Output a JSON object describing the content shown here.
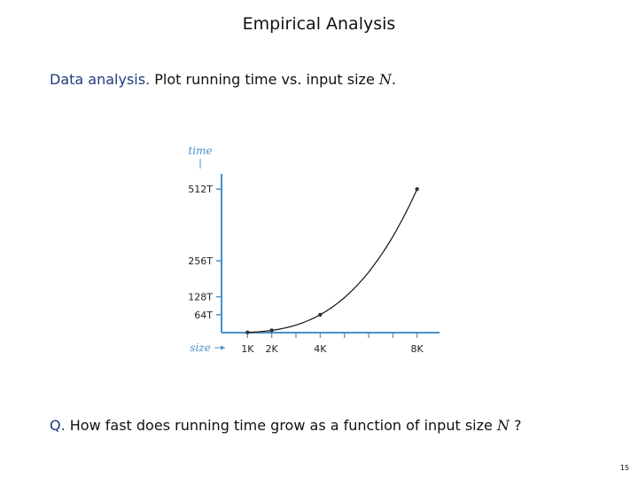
{
  "slide": {
    "title": "Empirical Analysis",
    "page_number": "15"
  },
  "intro": {
    "label": "Data analysis.",
    "text": " Plot running time vs. input size ",
    "variable": "N",
    "end": "."
  },
  "question": {
    "label": "Q.",
    "text": " How fast does running time grow as a function of input size ",
    "variable": "N",
    "end": " ?"
  },
  "colors": {
    "axis": "#4a90c8",
    "curve": "#111111",
    "point": "#333333",
    "label_blue": "#1f3b7a"
  },
  "chart_data": {
    "type": "line",
    "xlabel": "size",
    "ylabel": "time",
    "x": [
      1000,
      2000,
      4000,
      8000
    ],
    "y": [
      1,
      8,
      64,
      512
    ],
    "x_unit": "K",
    "y_unit": "T",
    "xlim": [
      0,
      9000
    ],
    "ylim": [
      0,
      560
    ],
    "x_ticks": [
      {
        "value": 1000,
        "label": "1K"
      },
      {
        "value": 2000,
        "label": "2K"
      },
      {
        "value": 4000,
        "label": "4K"
      },
      {
        "value": 8000,
        "label": "8K"
      }
    ],
    "y_ticks": [
      {
        "value": 64,
        "label": "64T"
      },
      {
        "value": 128,
        "label": "128T"
      },
      {
        "value": 256,
        "label": "256T"
      },
      {
        "value": 512,
        "label": "512T"
      }
    ],
    "grid": false,
    "legend": false
  }
}
